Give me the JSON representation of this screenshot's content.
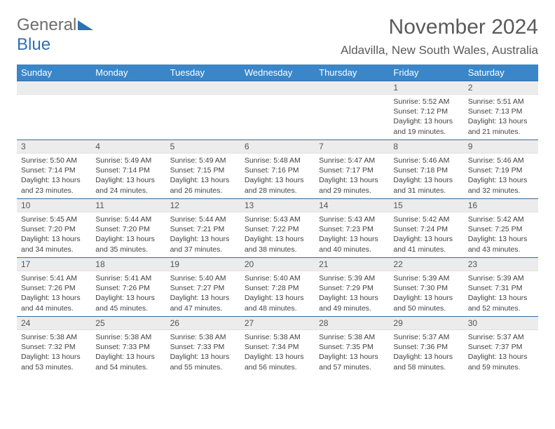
{
  "logo": {
    "part1": "General",
    "part2": "Blue"
  },
  "header": {
    "title": "November 2024",
    "location": "Aldavilla, New South Wales, Australia"
  },
  "colors": {
    "header_bg": "#3a86c8",
    "header_text": "#ffffff",
    "daynum_bg": "#ececec",
    "rule": "#3a6a9a",
    "logo_gray": "#6d6d6d",
    "logo_blue": "#2e6fb5"
  },
  "weekdays": [
    "Sunday",
    "Monday",
    "Tuesday",
    "Wednesday",
    "Thursday",
    "Friday",
    "Saturday"
  ],
  "weeks": [
    [
      {
        "empty": true
      },
      {
        "empty": true
      },
      {
        "empty": true
      },
      {
        "empty": true
      },
      {
        "empty": true
      },
      {
        "day": "1",
        "sunrise": "Sunrise: 5:52 AM",
        "sunset": "Sunset: 7:12 PM",
        "dl1": "Daylight: 13 hours",
        "dl2": "and 19 minutes."
      },
      {
        "day": "2",
        "sunrise": "Sunrise: 5:51 AM",
        "sunset": "Sunset: 7:13 PM",
        "dl1": "Daylight: 13 hours",
        "dl2": "and 21 minutes."
      }
    ],
    [
      {
        "day": "3",
        "sunrise": "Sunrise: 5:50 AM",
        "sunset": "Sunset: 7:14 PM",
        "dl1": "Daylight: 13 hours",
        "dl2": "and 23 minutes."
      },
      {
        "day": "4",
        "sunrise": "Sunrise: 5:49 AM",
        "sunset": "Sunset: 7:14 PM",
        "dl1": "Daylight: 13 hours",
        "dl2": "and 24 minutes."
      },
      {
        "day": "5",
        "sunrise": "Sunrise: 5:49 AM",
        "sunset": "Sunset: 7:15 PM",
        "dl1": "Daylight: 13 hours",
        "dl2": "and 26 minutes."
      },
      {
        "day": "6",
        "sunrise": "Sunrise: 5:48 AM",
        "sunset": "Sunset: 7:16 PM",
        "dl1": "Daylight: 13 hours",
        "dl2": "and 28 minutes."
      },
      {
        "day": "7",
        "sunrise": "Sunrise: 5:47 AM",
        "sunset": "Sunset: 7:17 PM",
        "dl1": "Daylight: 13 hours",
        "dl2": "and 29 minutes."
      },
      {
        "day": "8",
        "sunrise": "Sunrise: 5:46 AM",
        "sunset": "Sunset: 7:18 PM",
        "dl1": "Daylight: 13 hours",
        "dl2": "and 31 minutes."
      },
      {
        "day": "9",
        "sunrise": "Sunrise: 5:46 AM",
        "sunset": "Sunset: 7:19 PM",
        "dl1": "Daylight: 13 hours",
        "dl2": "and 32 minutes."
      }
    ],
    [
      {
        "day": "10",
        "sunrise": "Sunrise: 5:45 AM",
        "sunset": "Sunset: 7:20 PM",
        "dl1": "Daylight: 13 hours",
        "dl2": "and 34 minutes."
      },
      {
        "day": "11",
        "sunrise": "Sunrise: 5:44 AM",
        "sunset": "Sunset: 7:20 PM",
        "dl1": "Daylight: 13 hours",
        "dl2": "and 35 minutes."
      },
      {
        "day": "12",
        "sunrise": "Sunrise: 5:44 AM",
        "sunset": "Sunset: 7:21 PM",
        "dl1": "Daylight: 13 hours",
        "dl2": "and 37 minutes."
      },
      {
        "day": "13",
        "sunrise": "Sunrise: 5:43 AM",
        "sunset": "Sunset: 7:22 PM",
        "dl1": "Daylight: 13 hours",
        "dl2": "and 38 minutes."
      },
      {
        "day": "14",
        "sunrise": "Sunrise: 5:43 AM",
        "sunset": "Sunset: 7:23 PM",
        "dl1": "Daylight: 13 hours",
        "dl2": "and 40 minutes."
      },
      {
        "day": "15",
        "sunrise": "Sunrise: 5:42 AM",
        "sunset": "Sunset: 7:24 PM",
        "dl1": "Daylight: 13 hours",
        "dl2": "and 41 minutes."
      },
      {
        "day": "16",
        "sunrise": "Sunrise: 5:42 AM",
        "sunset": "Sunset: 7:25 PM",
        "dl1": "Daylight: 13 hours",
        "dl2": "and 43 minutes."
      }
    ],
    [
      {
        "day": "17",
        "sunrise": "Sunrise: 5:41 AM",
        "sunset": "Sunset: 7:26 PM",
        "dl1": "Daylight: 13 hours",
        "dl2": "and 44 minutes."
      },
      {
        "day": "18",
        "sunrise": "Sunrise: 5:41 AM",
        "sunset": "Sunset: 7:26 PM",
        "dl1": "Daylight: 13 hours",
        "dl2": "and 45 minutes."
      },
      {
        "day": "19",
        "sunrise": "Sunrise: 5:40 AM",
        "sunset": "Sunset: 7:27 PM",
        "dl1": "Daylight: 13 hours",
        "dl2": "and 47 minutes."
      },
      {
        "day": "20",
        "sunrise": "Sunrise: 5:40 AM",
        "sunset": "Sunset: 7:28 PM",
        "dl1": "Daylight: 13 hours",
        "dl2": "and 48 minutes."
      },
      {
        "day": "21",
        "sunrise": "Sunrise: 5:39 AM",
        "sunset": "Sunset: 7:29 PM",
        "dl1": "Daylight: 13 hours",
        "dl2": "and 49 minutes."
      },
      {
        "day": "22",
        "sunrise": "Sunrise: 5:39 AM",
        "sunset": "Sunset: 7:30 PM",
        "dl1": "Daylight: 13 hours",
        "dl2": "and 50 minutes."
      },
      {
        "day": "23",
        "sunrise": "Sunrise: 5:39 AM",
        "sunset": "Sunset: 7:31 PM",
        "dl1": "Daylight: 13 hours",
        "dl2": "and 52 minutes."
      }
    ],
    [
      {
        "day": "24",
        "sunrise": "Sunrise: 5:38 AM",
        "sunset": "Sunset: 7:32 PM",
        "dl1": "Daylight: 13 hours",
        "dl2": "and 53 minutes."
      },
      {
        "day": "25",
        "sunrise": "Sunrise: 5:38 AM",
        "sunset": "Sunset: 7:33 PM",
        "dl1": "Daylight: 13 hours",
        "dl2": "and 54 minutes."
      },
      {
        "day": "26",
        "sunrise": "Sunrise: 5:38 AM",
        "sunset": "Sunset: 7:33 PM",
        "dl1": "Daylight: 13 hours",
        "dl2": "and 55 minutes."
      },
      {
        "day": "27",
        "sunrise": "Sunrise: 5:38 AM",
        "sunset": "Sunset: 7:34 PM",
        "dl1": "Daylight: 13 hours",
        "dl2": "and 56 minutes."
      },
      {
        "day": "28",
        "sunrise": "Sunrise: 5:38 AM",
        "sunset": "Sunset: 7:35 PM",
        "dl1": "Daylight: 13 hours",
        "dl2": "and 57 minutes."
      },
      {
        "day": "29",
        "sunrise": "Sunrise: 5:37 AM",
        "sunset": "Sunset: 7:36 PM",
        "dl1": "Daylight: 13 hours",
        "dl2": "and 58 minutes."
      },
      {
        "day": "30",
        "sunrise": "Sunrise: 5:37 AM",
        "sunset": "Sunset: 7:37 PM",
        "dl1": "Daylight: 13 hours",
        "dl2": "and 59 minutes."
      }
    ]
  ]
}
